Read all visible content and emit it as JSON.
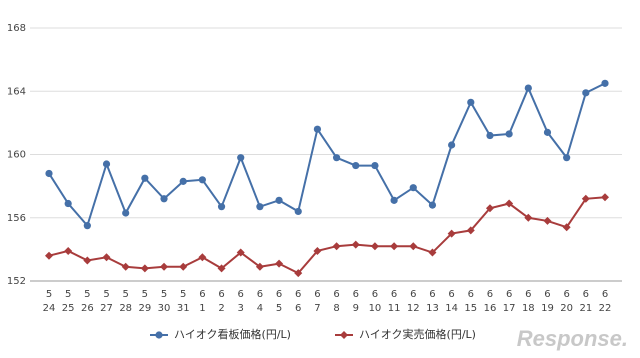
{
  "chart_data": {
    "type": "line",
    "categories": [
      [
        "5",
        "24"
      ],
      [
        "5",
        "25"
      ],
      [
        "5",
        "26"
      ],
      [
        "5",
        "27"
      ],
      [
        "5",
        "28"
      ],
      [
        "5",
        "29"
      ],
      [
        "5",
        "30"
      ],
      [
        "5",
        "31"
      ],
      [
        "6",
        "1"
      ],
      [
        "6",
        "2"
      ],
      [
        "6",
        "3"
      ],
      [
        "6",
        "4"
      ],
      [
        "6",
        "5"
      ],
      [
        "6",
        "6"
      ],
      [
        "6",
        "7"
      ],
      [
        "6",
        "8"
      ],
      [
        "6",
        "9"
      ],
      [
        "6",
        "10"
      ],
      [
        "6",
        "11"
      ],
      [
        "6",
        "12"
      ],
      [
        "6",
        "13"
      ],
      [
        "6",
        "14"
      ],
      [
        "6",
        "15"
      ],
      [
        "6",
        "16"
      ],
      [
        "6",
        "17"
      ],
      [
        "6",
        "18"
      ],
      [
        "6",
        "19"
      ],
      [
        "6",
        "20"
      ],
      [
        "6",
        "21"
      ],
      [
        "6",
        "22"
      ]
    ],
    "series": [
      {
        "name": "ハイオク看板価格(円/L)",
        "color": "#4570a8",
        "marker": "circle",
        "values": [
          158.8,
          156.9,
          155.5,
          159.4,
          156.3,
          158.5,
          157.2,
          158.3,
          158.4,
          156.7,
          159.8,
          156.7,
          157.1,
          156.4,
          161.6,
          159.8,
          159.3,
          159.3,
          157.1,
          157.9,
          156.8,
          160.6,
          163.3,
          161.2,
          161.3,
          164.2,
          161.4,
          159.8,
          163.9,
          164.5
        ]
      },
      {
        "name": "ハイオク実売価格(円/L)",
        "color": "#a83c3c",
        "marker": "diamond",
        "values": [
          153.6,
          153.9,
          153.3,
          153.5,
          152.9,
          152.8,
          152.9,
          152.9,
          153.5,
          152.8,
          153.8,
          152.9,
          153.1,
          152.5,
          153.9,
          154.2,
          154.3,
          154.2,
          154.2,
          154.2,
          153.8,
          155.0,
          155.2,
          156.6,
          156.9,
          156.0,
          155.8,
          155.4,
          157.2,
          157.3
        ]
      }
    ],
    "ylim": [
      152,
      168
    ],
    "yticks": [
      152,
      156,
      160,
      164,
      168
    ],
    "grid": true
  },
  "watermark": "Response."
}
